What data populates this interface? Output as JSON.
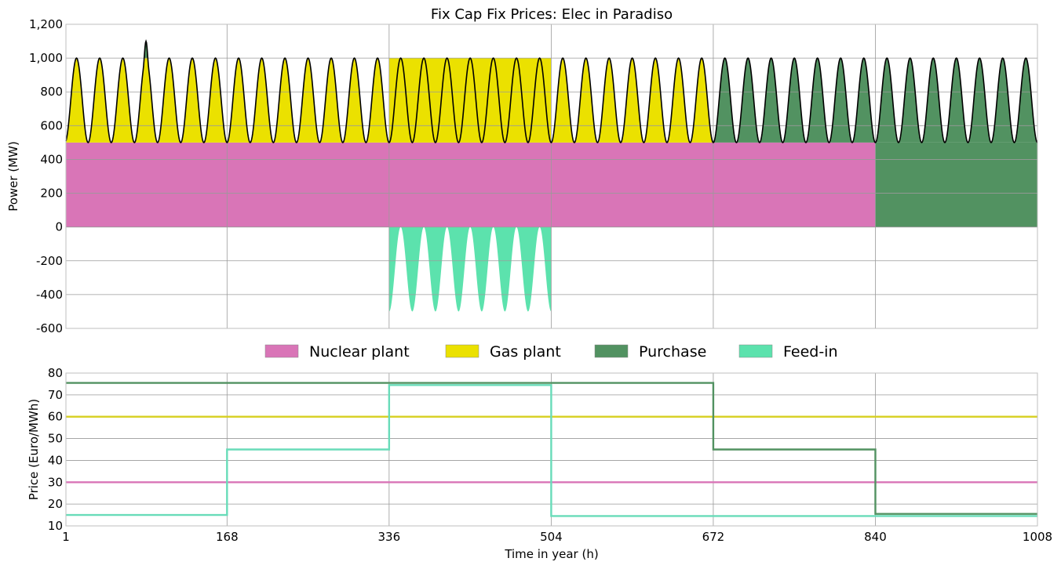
{
  "chart_data": [
    {
      "type": "area",
      "title": "Fix Cap Fix Prices: Elec in Paradiso",
      "xlabel": "",
      "ylabel": "Power (MW)",
      "xlim": [
        1,
        1008
      ],
      "ylim": [
        -600,
        1200
      ],
      "yticks": [
        -600,
        -400,
        -200,
        0,
        200,
        400,
        600,
        800,
        1000,
        1200
      ],
      "ytick_labels": [
        "-600",
        "-400",
        "-200",
        "0",
        "200",
        "400",
        "600",
        "800",
        "1,000",
        "1,200"
      ],
      "xgrid": [
        168,
        336,
        504,
        672,
        840
      ],
      "grid": true,
      "demand": {
        "base": 500,
        "amplitude": 500,
        "period_hours": 24,
        "peak_hours": [
          12,
          36,
          60,
          84,
          108,
          132,
          156,
          180,
          204,
          228,
          252,
          276,
          300,
          324,
          348,
          372,
          396,
          420,
          444,
          468,
          492,
          516,
          540,
          564,
          588,
          612,
          636,
          660,
          684,
          708,
          732,
          756,
          780,
          804,
          828,
          852,
          876,
          900,
          924,
          948,
          972,
          996
        ],
        "extra_peak": {
          "x": 84,
          "y": 1100
        }
      },
      "series": [
        {
          "name": "Nuclear plant",
          "color": "#d975b7",
          "segments": [
            {
              "x": [
                1,
                840
              ],
              "value": 500
            }
          ]
        },
        {
          "name": "Gas plant",
          "color": "#ebe100",
          "segments": [
            {
              "x": [
                1,
                336
              ],
              "value": "demand above 500, up to 1000"
            },
            {
              "x": [
                336,
                504
              ],
              "value": 1000
            },
            {
              "x": [
                504,
                672
              ],
              "value": "demand above 500"
            }
          ]
        },
        {
          "name": "Purchase",
          "color": "#529261",
          "segments": [
            {
              "x": [
                84,
                84
              ],
              "value": "demand above 1000"
            },
            {
              "x": [
                672,
                840
              ],
              "value": "demand above 500"
            },
            {
              "x": [
                840,
                1008
              ],
              "value": "demand"
            }
          ]
        },
        {
          "name": "Feed-in",
          "color": "#5ce2ad",
          "segments": [
            {
              "x": [
                336,
                504
              ],
              "value": "-(1000 - demand)",
              "min": -500
            }
          ]
        }
      ],
      "legend": {
        "placement": "below",
        "items": [
          "Nuclear plant",
          "Gas plant",
          "Purchase",
          "Feed-in"
        ]
      }
    },
    {
      "type": "line",
      "title": "",
      "xlabel": "Time in year (h)",
      "ylabel": "Price (Euro/MWh)",
      "xlim": [
        1,
        1008
      ],
      "ylim": [
        10,
        80
      ],
      "xticks": [
        1,
        168,
        336,
        504,
        672,
        840,
        1008
      ],
      "xtick_labels": [
        "1",
        "168",
        "336",
        "504",
        "672",
        "840",
        "1008"
      ],
      "yticks": [
        10,
        20,
        30,
        40,
        50,
        60,
        70,
        80
      ],
      "ytick_labels": [
        "10",
        "20",
        "30",
        "40",
        "50",
        "60",
        "70",
        "80"
      ],
      "grid": true,
      "series": [
        {
          "name": "Nuclear plant",
          "color": "#d975b7",
          "steps": [
            [
              1,
              30
            ],
            [
              1008,
              30
            ]
          ]
        },
        {
          "name": "Gas plant",
          "color": "#d7cf1f",
          "steps": [
            [
              1,
              60
            ],
            [
              1008,
              60
            ]
          ]
        },
        {
          "name": "Purchase",
          "color": "#529261",
          "steps": [
            [
              1,
              75.5
            ],
            [
              672,
              45
            ],
            [
              840,
              15.5
            ],
            [
              1008,
              15.5
            ]
          ]
        },
        {
          "name": "Feed-in",
          "color": "#68dcb9",
          "steps": [
            [
              1,
              15
            ],
            [
              168,
              45
            ],
            [
              336,
              74.5
            ],
            [
              504,
              14.5
            ],
            [
              1008,
              14.5
            ]
          ]
        }
      ]
    }
  ]
}
